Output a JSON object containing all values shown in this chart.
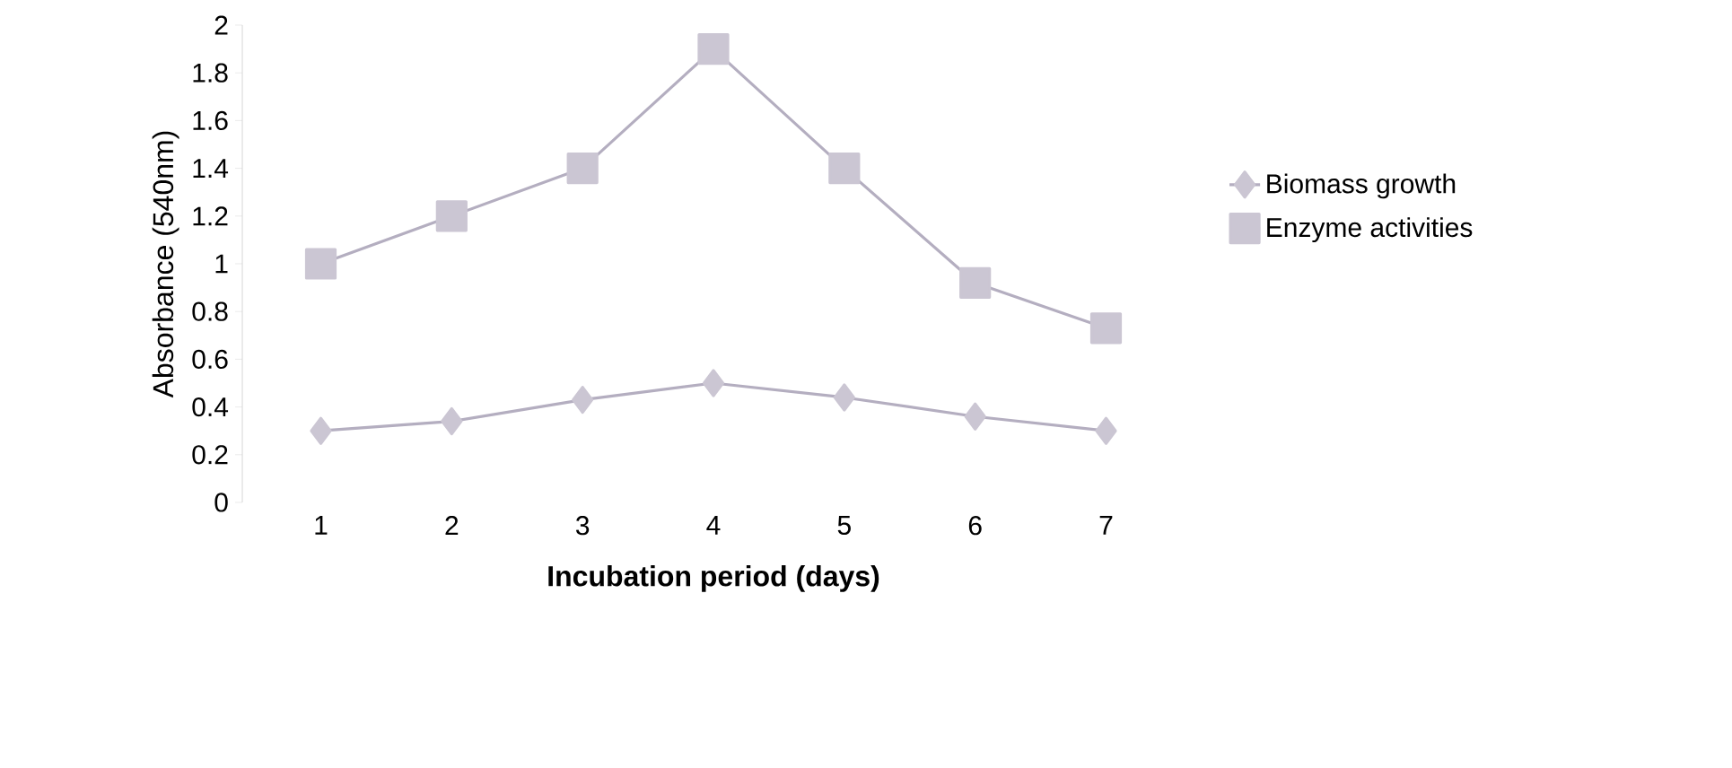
{
  "chart_data": {
    "type": "line",
    "xlabel": "Incubation period (days)",
    "ylabel": "Absorbance (540nm)",
    "categories": [
      "1",
      "2",
      "3",
      "4",
      "5",
      "6",
      "7"
    ],
    "series": [
      {
        "name": "Biomass growth",
        "color": "#b4aec0",
        "marker": "diamond",
        "values": [
          0.3,
          0.34,
          0.43,
          0.5,
          0.44,
          0.36,
          0.3
        ]
      },
      {
        "name": "Enzyme activities",
        "color": "#b4aec0",
        "marker": "square",
        "values": [
          1.0,
          1.2,
          1.4,
          1.9,
          1.4,
          0.92,
          0.73
        ]
      }
    ],
    "ylim": [
      0,
      2
    ],
    "yticks": [
      0,
      0.2,
      0.4,
      0.6,
      0.8,
      1,
      1.2,
      1.4,
      1.6,
      1.8,
      2
    ],
    "legend": "right",
    "grid": false,
    "line_style": "solid"
  }
}
